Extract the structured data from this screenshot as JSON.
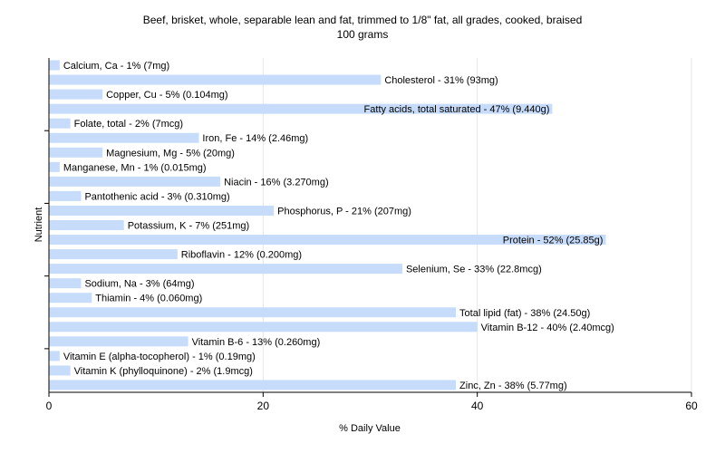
{
  "chart_data": {
    "type": "bar",
    "orientation": "horizontal",
    "title_line1": "Beef, brisket, whole, separable lean and fat, trimmed to 1/8\" fat, all grades, cooked, braised",
    "title_line2": "100 grams",
    "xlabel": "% Daily Value",
    "ylabel": "Nutrient",
    "xlim": [
      0,
      60
    ],
    "xticks": [
      "0",
      "20",
      "40",
      "60"
    ],
    "grid": true,
    "bar_color": "#c6dcfa",
    "categories": [
      "Calcium, Ca - 1% (7mg)",
      "Cholesterol - 31% (93mg)",
      "Copper, Cu - 5% (0.104mg)",
      "Fatty acids, total saturated - 47% (9.440g)",
      "Folate, total - 2% (7mcg)",
      "Iron, Fe - 14% (2.46mg)",
      "Magnesium, Mg - 5% (20mg)",
      "Manganese, Mn - 1% (0.015mg)",
      "Niacin - 16% (3.270mg)",
      "Pantothenic acid - 3% (0.310mg)",
      "Phosphorus, P - 21% (207mg)",
      "Potassium, K - 7% (251mg)",
      "Protein - 52% (25.85g)",
      "Riboflavin - 12% (0.200mg)",
      "Selenium, Se - 33% (22.8mcg)",
      "Sodium, Na - 3% (64mg)",
      "Thiamin - 4% (0.060mg)",
      "Total lipid (fat) - 38% (24.50g)",
      "Vitamin B-12 - 40% (2.40mcg)",
      "Vitamin B-6 - 13% (0.260mg)",
      "Vitamin E (alpha-tocopherol) - 1% (0.19mg)",
      "Vitamin K (phylloquinone) - 2% (1.9mcg)",
      "Zinc, Zn - 38% (5.77mg)"
    ],
    "values": [
      1,
      31,
      5,
      47,
      2,
      14,
      5,
      1,
      16,
      3,
      21,
      7,
      52,
      12,
      33,
      3,
      4,
      38,
      40,
      13,
      1,
      2,
      38
    ],
    "inside_label": [
      "Fatty acids, total saturated - 47% (9.440g)",
      "Protein - 52% (25.85g)"
    ]
  }
}
